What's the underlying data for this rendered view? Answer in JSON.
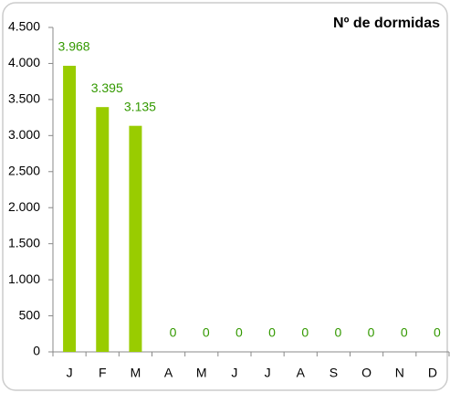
{
  "chart_data": {
    "type": "bar",
    "title": "Nº de dormidas",
    "categories": [
      "J",
      "F",
      "M",
      "A",
      "M",
      "J",
      "J",
      "A",
      "S",
      "O",
      "N",
      "D"
    ],
    "values": [
      3968,
      3395,
      3135,
      0,
      0,
      0,
      0,
      0,
      0,
      0,
      0,
      0
    ],
    "value_labels": [
      "3.968",
      "3.395",
      "3.135",
      "0",
      "0",
      "0",
      "0",
      "0",
      "0",
      "0",
      "0",
      "0"
    ],
    "color": "#99cc00",
    "label_color": "#339900",
    "ylim": [
      0,
      4500
    ],
    "yticks": [
      0,
      500,
      {
        "value": 1000,
        "label": "1.000"
      },
      {
        "value": 1500,
        "label": "1.500"
      },
      {
        "value": 2000,
        "label": "2.000"
      },
      {
        "value": 2500,
        "label": "2.500"
      },
      {
        "value": 3000,
        "label": "3.000"
      },
      {
        "value": 3500,
        "label": "3.500"
      },
      {
        "value": 4000,
        "label": "4.000"
      },
      {
        "value": 4500,
        "label": "4.500"
      }
    ],
    "grid": false
  }
}
